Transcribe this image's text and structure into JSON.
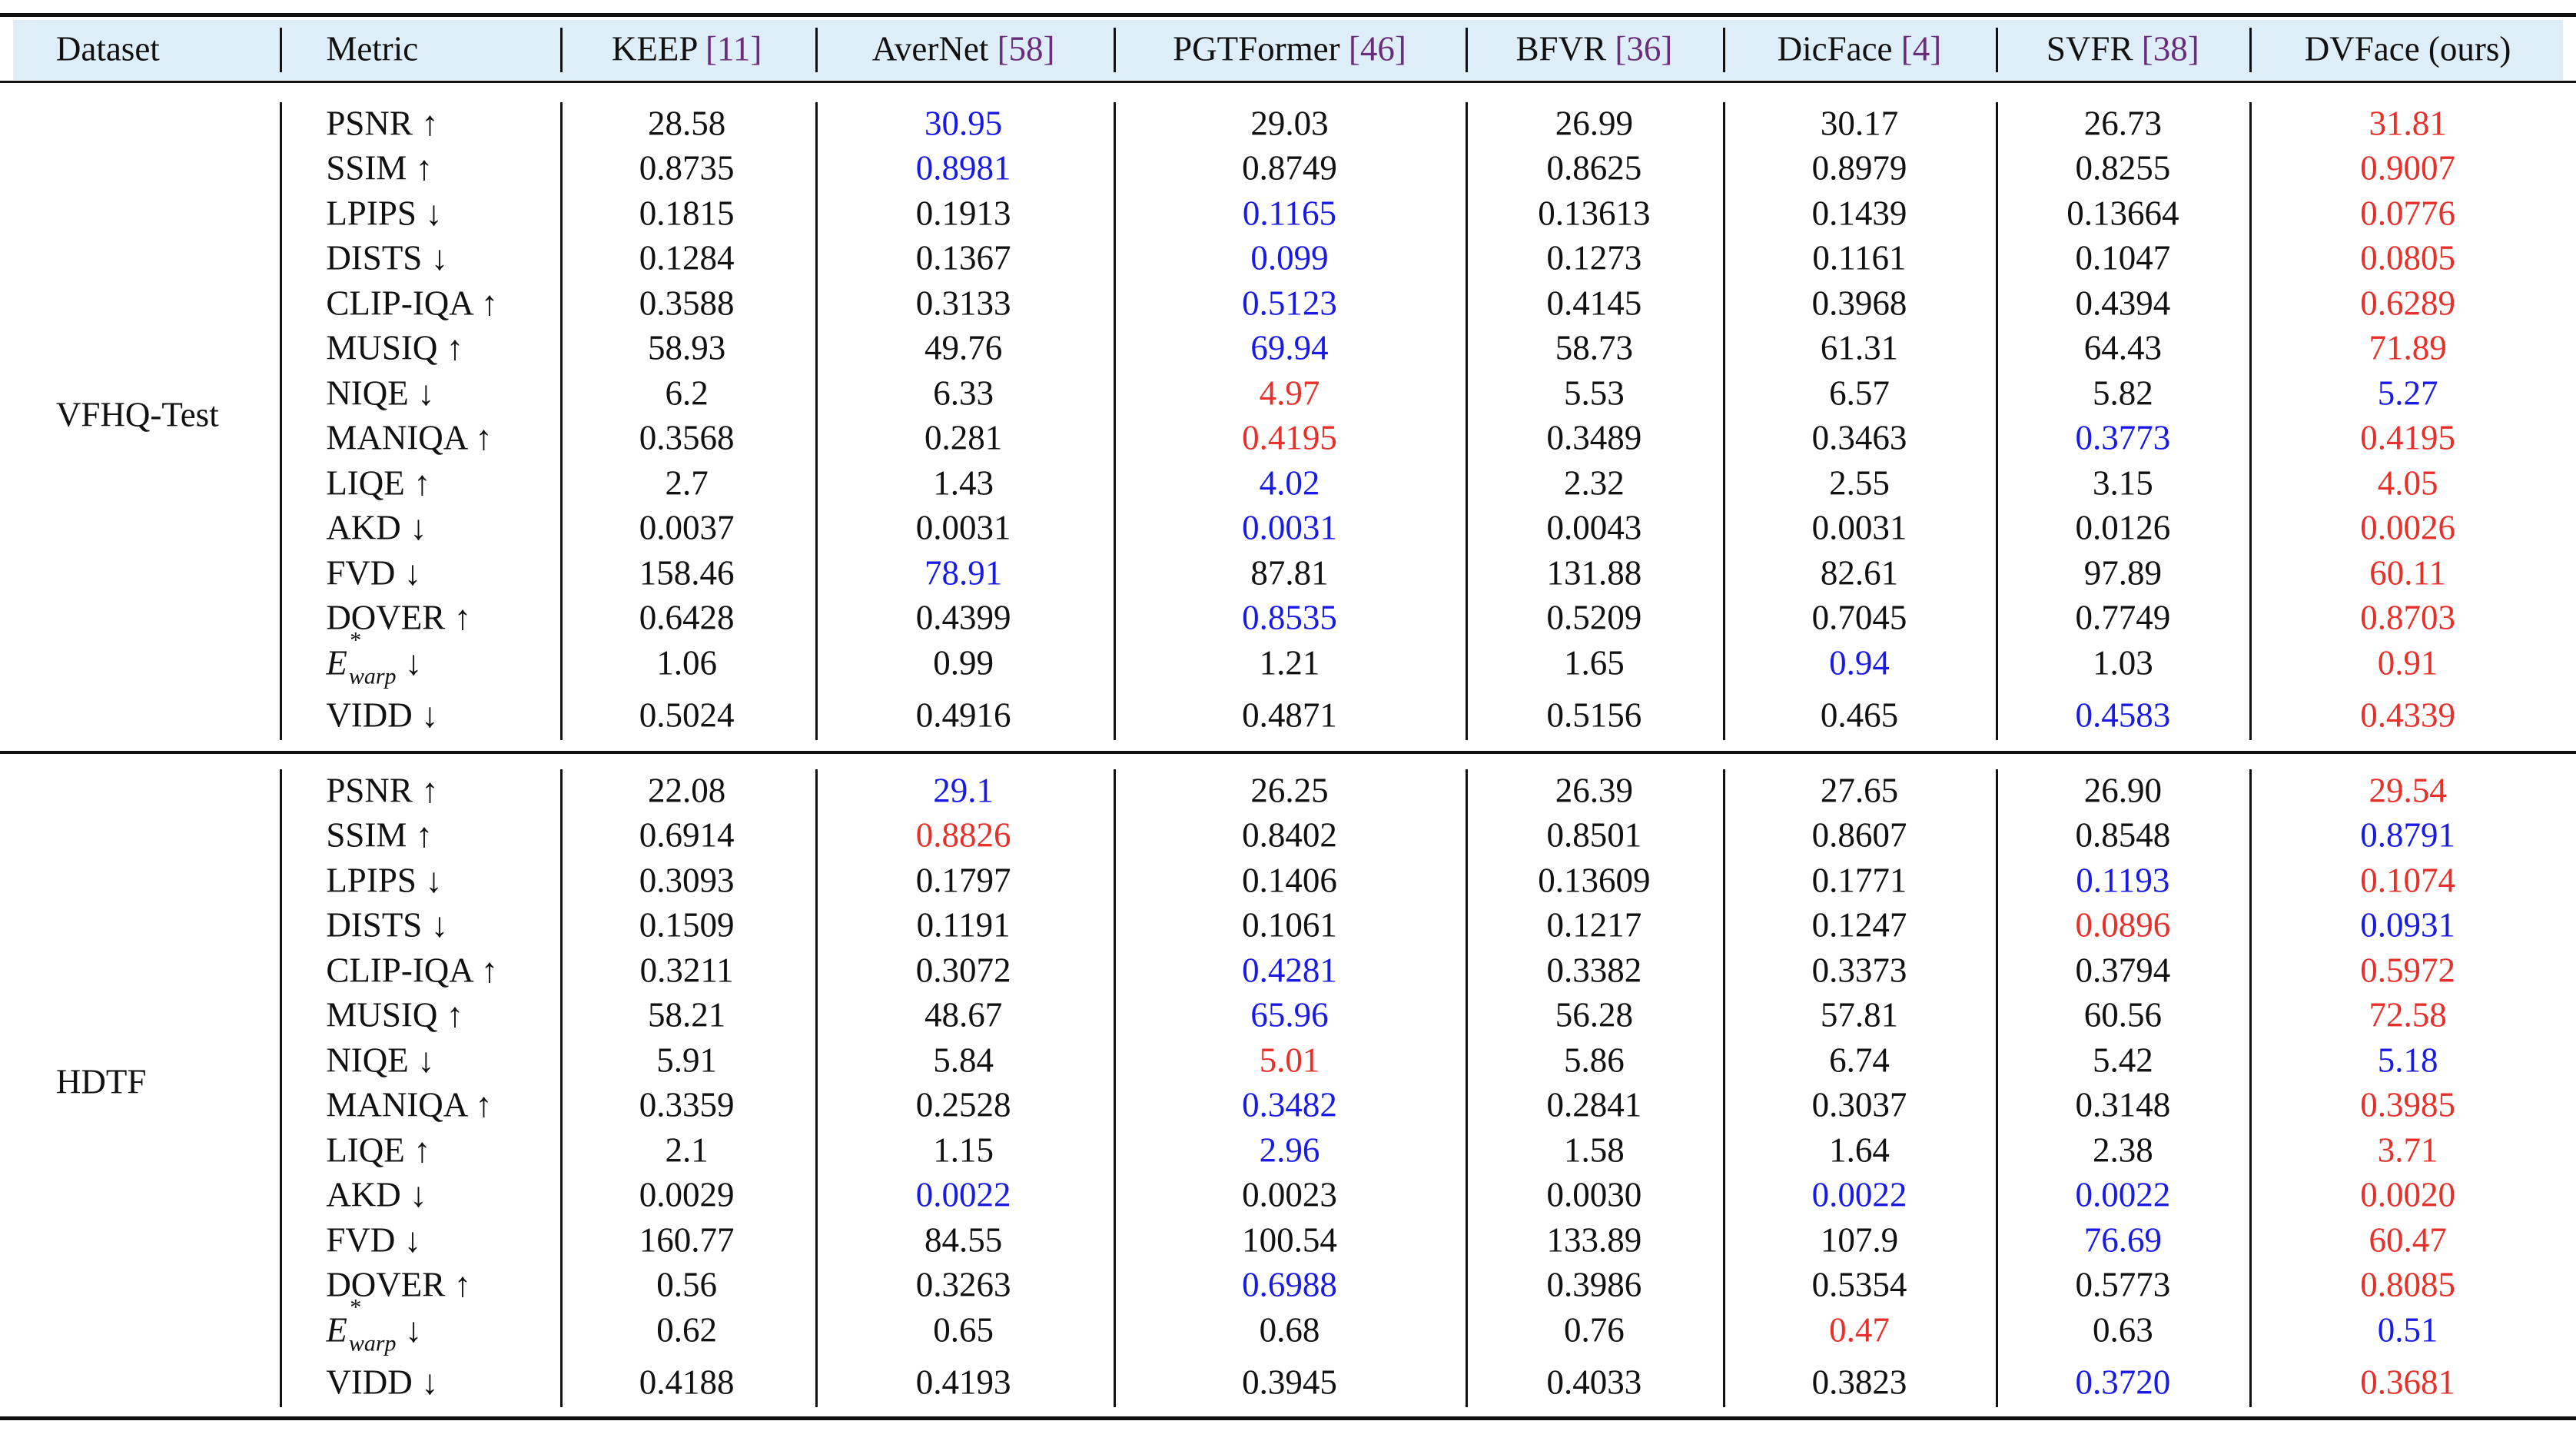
{
  "table": {
    "header": [
      {
        "name": "Dataset"
      },
      {
        "name": "Metric"
      },
      {
        "name": "KEEP",
        "ref": "[11]"
      },
      {
        "name": "AverNet",
        "ref": "[58]"
      },
      {
        "name": "PGTFormer",
        "ref": "[46]"
      },
      {
        "name": "BFVR",
        "ref": "[36]"
      },
      {
        "name": "DicFace",
        "ref": "[4]"
      },
      {
        "name": "SVFR",
        "ref": "[38]"
      },
      {
        "name": "DVFace (ours)"
      }
    ],
    "groups": [
      {
        "dataset": "VFHQ-Test",
        "rows": [
          {
            "metric": {
              "name": "PSNR",
              "arrow": "↑"
            },
            "cells": [
              "28.58",
              {
                "text": "30.95",
                "color": "#1a1ae6"
              },
              "29.03",
              "26.99",
              "30.17",
              "26.73",
              {
                "text": "31.81",
                "color": "#e8302a"
              }
            ]
          },
          {
            "metric": {
              "name": "SSIM",
              "arrow": "↑"
            },
            "cells": [
              "0.8735",
              {
                "text": "0.8981",
                "color": "#1a1ae6"
              },
              "0.8749",
              "0.8625",
              "0.8979",
              "0.8255",
              {
                "text": "0.9007",
                "color": "#e8302a"
              }
            ]
          },
          {
            "metric": {
              "name": "LPIPS",
              "arrow": "↓"
            },
            "cells": [
              "0.1815",
              "0.1913",
              {
                "text": "0.1165",
                "color": "#1a1ae6"
              },
              "0.13613",
              "0.1439",
              "0.13664",
              {
                "text": "0.0776",
                "color": "#e8302a"
              }
            ]
          },
          {
            "metric": {
              "name": "DISTS",
              "arrow": "↓"
            },
            "cells": [
              "0.1284",
              "0.1367",
              {
                "text": "0.099",
                "color": "#1a1ae6"
              },
              "0.1273",
              "0.1161",
              "0.1047",
              {
                "text": "0.0805",
                "color": "#e8302a"
              }
            ]
          },
          {
            "metric": {
              "name": "CLIP-IQA",
              "arrow": "↑"
            },
            "cells": [
              "0.3588",
              "0.3133",
              {
                "text": "0.5123",
                "color": "#1a1ae6"
              },
              "0.4145",
              "0.3968",
              "0.4394",
              {
                "text": "0.6289",
                "color": "#e8302a"
              }
            ]
          },
          {
            "metric": {
              "name": "MUSIQ",
              "arrow": "↑"
            },
            "cells": [
              "58.93",
              "49.76",
              {
                "text": "69.94",
                "color": "#1a1ae6"
              },
              "58.73",
              "61.31",
              "64.43",
              {
                "text": "71.89",
                "color": "#e8302a"
              }
            ]
          },
          {
            "metric": {
              "name": "NIQE",
              "arrow": "↓"
            },
            "cells": [
              "6.2",
              "6.33",
              {
                "text": "4.97",
                "color": "#e8302a"
              },
              "5.53",
              "6.57",
              "5.82",
              {
                "text": "5.27",
                "color": "#1a1ae6"
              }
            ]
          },
          {
            "metric": {
              "name": "MANIQA",
              "arrow": "↑"
            },
            "cells": [
              "0.3568",
              "0.281",
              {
                "text": "0.4195",
                "color": "#e8302a"
              },
              "0.3489",
              "0.3463",
              {
                "text": "0.3773",
                "color": "#1a1ae6"
              },
              {
                "text": "0.4195",
                "color": "#e8302a"
              }
            ]
          },
          {
            "metric": {
              "name": "LIQE",
              "arrow": "↑"
            },
            "cells": [
              "2.7",
              "1.43",
              {
                "text": "4.02",
                "color": "#1a1ae6"
              },
              "2.32",
              "2.55",
              "3.15",
              {
                "text": "4.05",
                "color": "#e8302a"
              }
            ]
          },
          {
            "metric": {
              "name": "AKD",
              "arrow": "↓"
            },
            "cells": [
              "0.0037",
              "0.0031",
              {
                "text": "0.0031",
                "color": "#1a1ae6"
              },
              "0.0043",
              "0.0031",
              "0.0126",
              {
                "text": "0.0026",
                "color": "#e8302a"
              }
            ]
          },
          {
            "metric": {
              "name": "FVD",
              "arrow": "↓"
            },
            "cells": [
              "158.46",
              {
                "text": "78.91",
                "color": "#1a1ae6"
              },
              "87.81",
              "131.88",
              "82.61",
              "97.89",
              {
                "text": "60.11",
                "color": "#e8302a"
              }
            ]
          },
          {
            "metric": {
              "name": "DOVER",
              "arrow": "↑"
            },
            "cells": [
              "0.6428",
              "0.4399",
              {
                "text": "0.8535",
                "color": "#1a1ae6"
              },
              "0.5209",
              "0.7045",
              "0.7749",
              {
                "text": "0.8703",
                "color": "#e8302a"
              }
            ]
          },
          {
            "metric": {
              "name": "E",
              "sup": "*",
              "sub": "warp",
              "arrow": "↓"
            },
            "cells": [
              "1.06",
              "0.99",
              "1.21",
              "1.65",
              {
                "text": "0.94",
                "color": "#1a1ae6"
              },
              "1.03",
              {
                "text": "0.91",
                "color": "#e8302a"
              }
            ]
          },
          {
            "metric": {
              "name": "VIDD",
              "arrow": "↓"
            },
            "cells": [
              "0.5024",
              "0.4916",
              "0.4871",
              "0.5156",
              "0.465",
              {
                "text": "0.4583",
                "color": "#1a1ae6"
              },
              {
                "text": "0.4339",
                "color": "#e8302a"
              }
            ]
          }
        ]
      },
      {
        "dataset": "HDTF",
        "rows": [
          {
            "metric": {
              "name": "PSNR",
              "arrow": "↑"
            },
            "cells": [
              "22.08",
              {
                "text": "29.1",
                "color": "#1a1ae6"
              },
              "26.25",
              "26.39",
              "27.65",
              "26.90",
              {
                "text": "29.54",
                "color": "#e8302a"
              }
            ]
          },
          {
            "metric": {
              "name": "SSIM",
              "arrow": "↑"
            },
            "cells": [
              "0.6914",
              {
                "text": "0.8826",
                "color": "#e8302a"
              },
              "0.8402",
              "0.8501",
              "0.8607",
              "0.8548",
              {
                "text": "0.8791",
                "color": "#1a1ae6"
              }
            ]
          },
          {
            "metric": {
              "name": "LPIPS",
              "arrow": "↓"
            },
            "cells": [
              "0.3093",
              "0.1797",
              "0.1406",
              "0.13609",
              "0.1771",
              {
                "text": "0.1193",
                "color": "#1a1ae6"
              },
              {
                "text": "0.1074",
                "color": "#e8302a"
              }
            ]
          },
          {
            "metric": {
              "name": "DISTS",
              "arrow": "↓"
            },
            "cells": [
              "0.1509",
              "0.1191",
              "0.1061",
              "0.1217",
              "0.1247",
              {
                "text": "0.0896",
                "color": "#e8302a"
              },
              {
                "text": "0.0931",
                "color": "#1a1ae6"
              }
            ]
          },
          {
            "metric": {
              "name": "CLIP-IQA",
              "arrow": "↑"
            },
            "cells": [
              "0.3211",
              "0.3072",
              {
                "text": "0.4281",
                "color": "#1a1ae6"
              },
              "0.3382",
              "0.3373",
              "0.3794",
              {
                "text": "0.5972",
                "color": "#e8302a"
              }
            ]
          },
          {
            "metric": {
              "name": "MUSIQ",
              "arrow": "↑"
            },
            "cells": [
              "58.21",
              "48.67",
              {
                "text": "65.96",
                "color": "#1a1ae6"
              },
              "56.28",
              "57.81",
              "60.56",
              {
                "text": "72.58",
                "color": "#e8302a"
              }
            ]
          },
          {
            "metric": {
              "name": "NIQE",
              "arrow": "↓"
            },
            "cells": [
              "5.91",
              "5.84",
              {
                "text": "5.01",
                "color": "#e8302a"
              },
              "5.86",
              "6.74",
              "5.42",
              {
                "text": "5.18",
                "color": "#1a1ae6"
              }
            ]
          },
          {
            "metric": {
              "name": "MANIQA",
              "arrow": "↑"
            },
            "cells": [
              "0.3359",
              "0.2528",
              {
                "text": "0.3482",
                "color": "#1a1ae6"
              },
              "0.2841",
              "0.3037",
              "0.3148",
              {
                "text": "0.3985",
                "color": "#e8302a"
              }
            ]
          },
          {
            "metric": {
              "name": "LIQE",
              "arrow": "↑"
            },
            "cells": [
              "2.1",
              "1.15",
              {
                "text": "2.96",
                "color": "#1a1ae6"
              },
              "1.58",
              "1.64",
              "2.38",
              {
                "text": "3.71",
                "color": "#e8302a"
              }
            ]
          },
          {
            "metric": {
              "name": "AKD",
              "arrow": "↓"
            },
            "cells": [
              "0.0029",
              {
                "text": "0.0022",
                "color": "#1a1ae6"
              },
              "0.0023",
              "0.0030",
              {
                "text": "0.0022",
                "color": "#1a1ae6"
              },
              {
                "text": "0.0022",
                "color": "#1a1ae6"
              },
              {
                "text": "0.0020",
                "color": "#e8302a"
              }
            ]
          },
          {
            "metric": {
              "name": "FVD",
              "arrow": "↓"
            },
            "cells": [
              "160.77",
              "84.55",
              "100.54",
              "133.89",
              "107.9",
              {
                "text": "76.69",
                "color": "#1a1ae6"
              },
              {
                "text": "60.47",
                "color": "#e8302a"
              }
            ]
          },
          {
            "metric": {
              "name": "DOVER",
              "arrow": "↑"
            },
            "cells": [
              "0.56",
              "0.3263",
              {
                "text": "0.6988",
                "color": "#1a1ae6"
              },
              "0.3986",
              "0.5354",
              "0.5773",
              {
                "text": "0.8085",
                "color": "#e8302a"
              }
            ]
          },
          {
            "metric": {
              "name": "E",
              "sup": "*",
              "sub": "warp",
              "arrow": "↓"
            },
            "cells": [
              "0.62",
              "0.65",
              "0.68",
              "0.76",
              {
                "text": "0.47",
                "color": "#e8302a"
              },
              "0.63",
              {
                "text": "0.51",
                "color": "#1a1ae6"
              }
            ]
          },
          {
            "metric": {
              "name": "VIDD",
              "arrow": "↓"
            },
            "cells": [
              "0.4188",
              "0.4193",
              "0.3945",
              "0.4033",
              "0.3823",
              {
                "text": "0.3720",
                "color": "#1a1ae6"
              },
              {
                "text": "0.3681",
                "color": "#e8302a"
              }
            ]
          }
        ]
      }
    ]
  }
}
